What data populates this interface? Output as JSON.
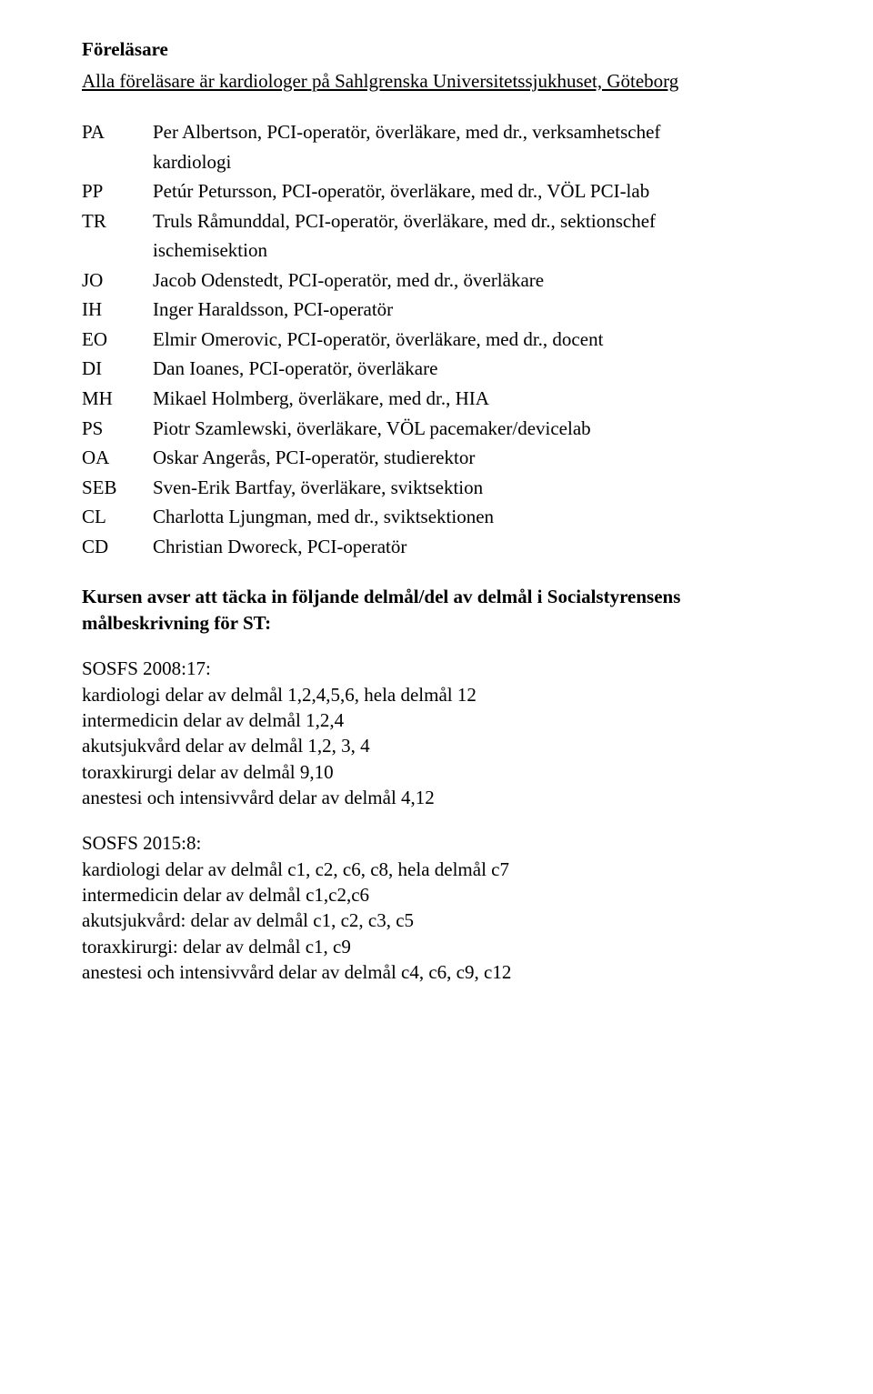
{
  "heading": "Föreläsare",
  "subtitle": "Alla föreläsare är kardiologer på Sahlgrenska Universitetssjukhuset, Göteborg",
  "lecturers": [
    {
      "code": "PA",
      "lines": [
        "Per Albertson, PCI-operatör, överläkare, med dr., verksamhetschef",
        "kardiologi"
      ]
    },
    {
      "code": "PP",
      "lines": [
        "Petúr Petursson, PCI-operatör, överläkare, med dr., VÖL PCI-lab"
      ]
    },
    {
      "code": "TR",
      "lines": [
        "Truls Råmunddal, PCI-operatör, överläkare, med dr., sektionschef",
        "ischemisektion"
      ]
    },
    {
      "code": "JO",
      "lines": [
        "Jacob Odenstedt, PCI-operatör, med dr., överläkare"
      ]
    },
    {
      "code": "IH",
      "lines": [
        "Inger Haraldsson, PCI-operatör"
      ]
    },
    {
      "code": "EO",
      "lines": [
        "Elmir Omerovic, PCI-operatör, överläkare, med dr., docent"
      ]
    },
    {
      "code": "DI",
      "lines": [
        "Dan Ioanes, PCI-operatör, överläkare"
      ]
    },
    {
      "code": "MH",
      "lines": [
        "Mikael Holmberg, överläkare, med dr., HIA"
      ]
    },
    {
      "code": "PS",
      "lines": [
        "Piotr Szamlewski, överläkare, VÖL pacemaker/devicelab"
      ]
    },
    {
      "code": "OA",
      "lines": [
        "Oskar Angerås, PCI-operatör, studierektor"
      ]
    },
    {
      "code": "SEB",
      "lines": [
        "Sven-Erik Bartfay, överläkare, sviktsektion"
      ]
    },
    {
      "code": "CL",
      "lines": [
        "Charlotta Ljungman, med dr., sviktsektionen"
      ]
    },
    {
      "code": "CD",
      "lines": [
        "Christian Dworeck, PCI-operatör"
      ]
    }
  ],
  "course": {
    "intro_lines": [
      "Kursen avser att täcka in följande delmål/del av delmål i Socialstyrensens",
      "målbeskrivning för ST:"
    ],
    "blocks": [
      {
        "title": "SOSFS 2008:17:",
        "lines": [
          "kardiologi delar av delmål 1,2,4,5,6, hela delmål 12",
          "intermedicin delar av delmål 1,2,4",
          "akutsjukvård delar av delmål 1,2, 3, 4",
          "toraxkirurgi delar av delmål 9,10",
          "anestesi och intensivvård delar av delmål 4,12"
        ]
      },
      {
        "title": "SOSFS 2015:8:",
        "lines": [
          "kardiologi delar av delmål c1, c2, c6, c8, hela delmål c7",
          "intermedicin delar av delmål c1,c2,c6",
          "akutsjukvård: delar av delmål c1, c2, c3, c5",
          "toraxkirurgi: delar av delmål c1, c9",
          "anestesi och intensivvård delar av delmål c4, c6, c9, c12"
        ]
      }
    ]
  }
}
